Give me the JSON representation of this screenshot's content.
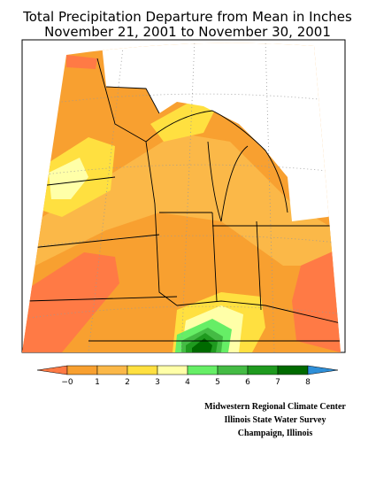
{
  "title": [
    "Total Precipitation Departure from Mean in Inches",
    "November 21, 2001 to November 30, 2001"
  ],
  "legend": {
    "labels": [
      "−0",
      "1",
      "2",
      "3",
      "4",
      "5",
      "6",
      "7",
      "8"
    ],
    "colors": [
      "#ff7a45",
      "#f8a030",
      "#fbb848",
      "#ffe040",
      "#ffffa8",
      "#66ee66",
      "#44bb44",
      "#1f9a1f",
      "#006a00",
      "#2e8fd8"
    ]
  },
  "credits": [
    "Midwestern Regional Climate Center",
    "Illinois State Water Survey",
    "Champaign, Illinois"
  ]
}
